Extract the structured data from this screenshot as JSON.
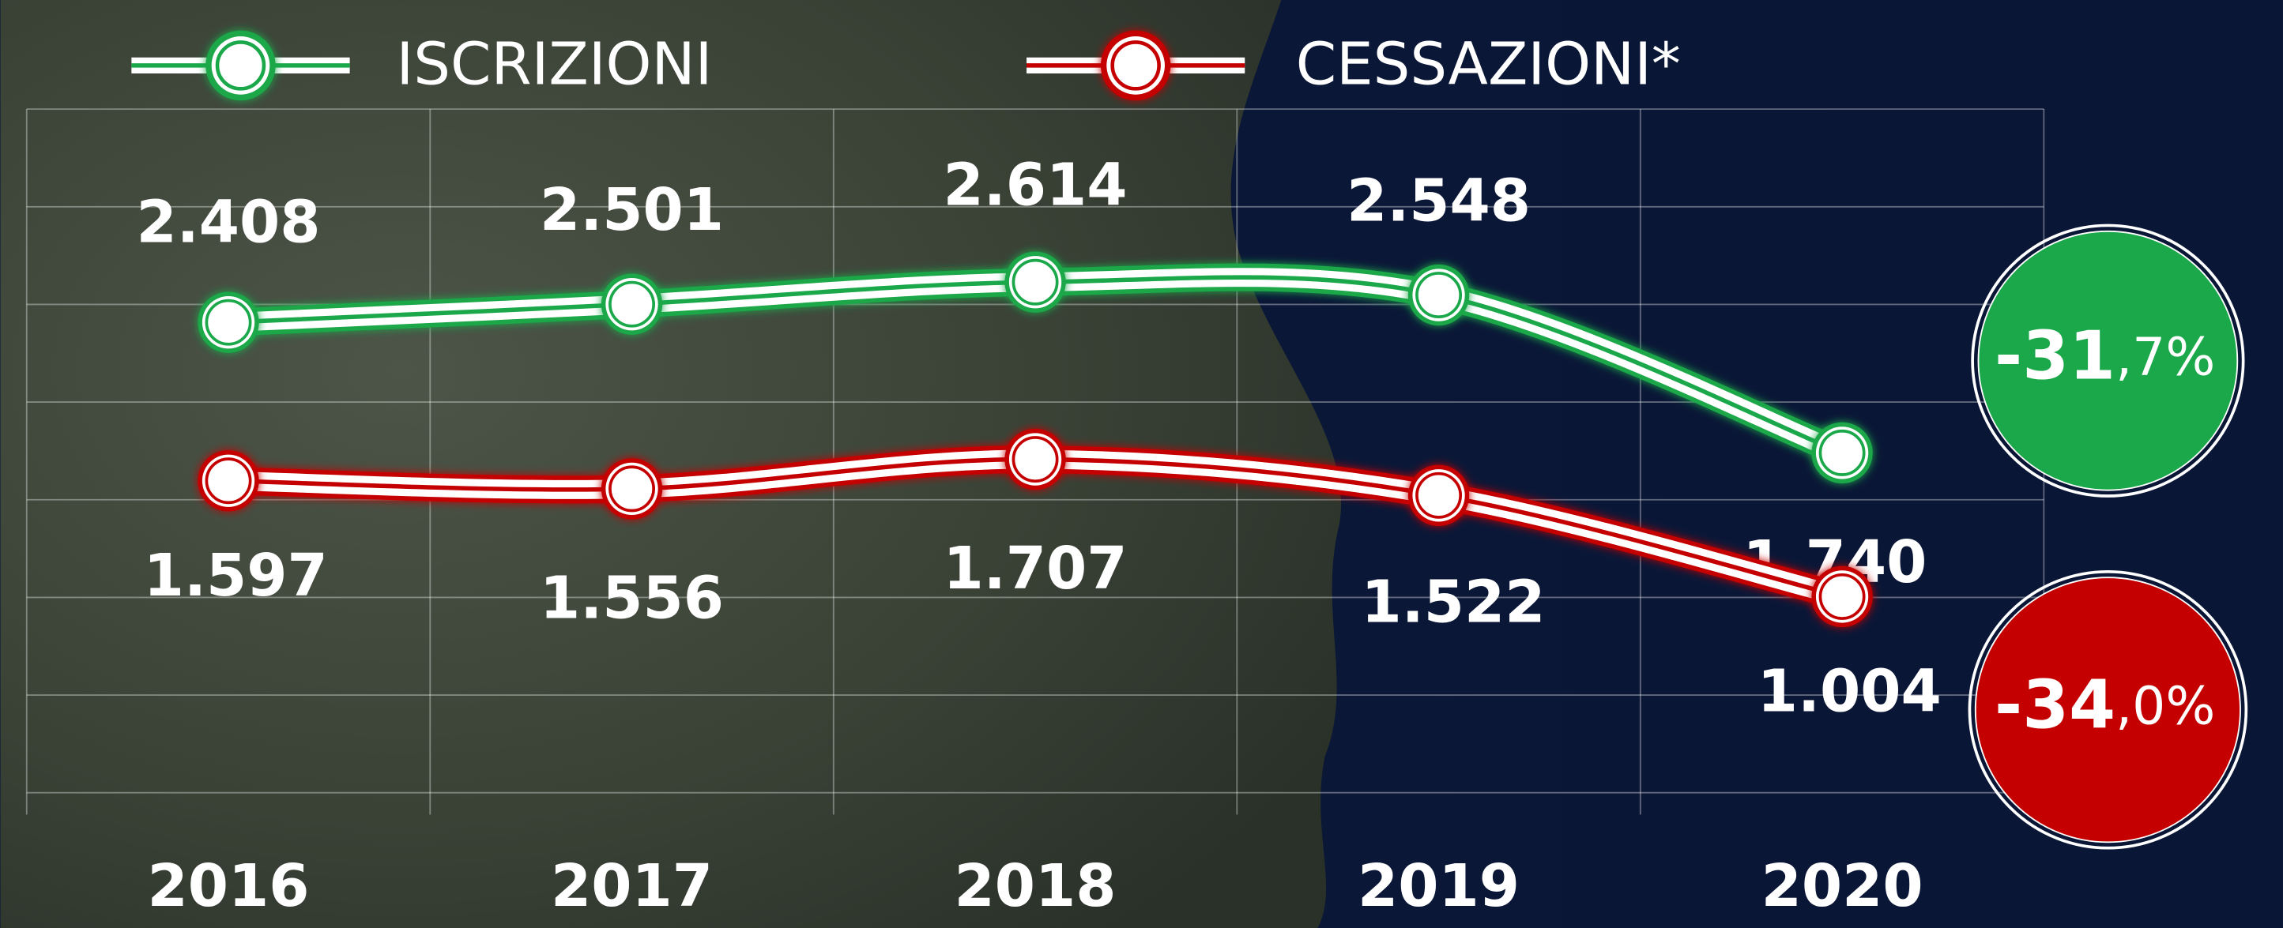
{
  "chart_data": {
    "type": "line",
    "categories": [
      "2016",
      "2017",
      "2018",
      "2019",
      "2020"
    ],
    "series": [
      {
        "name": "ISCRIZIONI",
        "color": "#1aa84a",
        "values": [
          2408,
          2501,
          2614,
          2548,
          1740
        ],
        "value_labels": [
          "2.408",
          "2.501",
          "2.614",
          "2.548",
          "1.740"
        ],
        "change_label": "-31,7%"
      },
      {
        "name": "CESSAZIONI*",
        "color": "#c40000",
        "values": [
          1597,
          1556,
          1707,
          1522,
          1004
        ],
        "value_labels": [
          "1.597",
          "1.556",
          "1.707",
          "1.522",
          "1.004"
        ],
        "change_label": "-34,0%"
      }
    ],
    "ylim": [
      0,
      3500
    ],
    "yticks": [
      0,
      500,
      1000,
      1500,
      2000,
      2500,
      3000,
      3500
    ],
    "grid": true
  }
}
